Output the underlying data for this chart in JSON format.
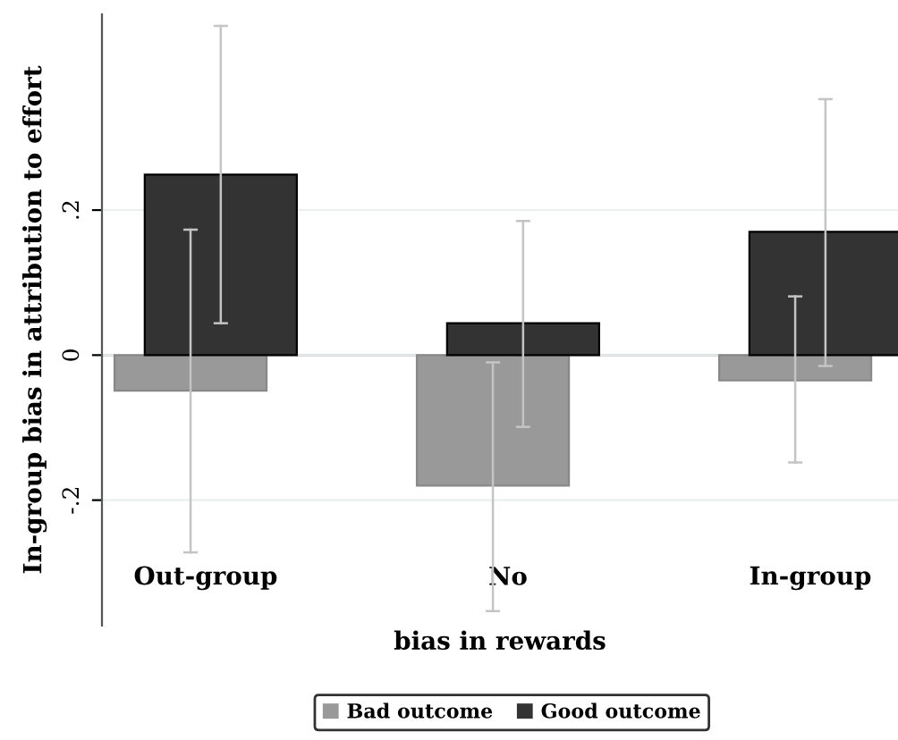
{
  "chart_data": {
    "type": "bar",
    "xlabel": "bias in rewards",
    "ylabel": "In-group bias in attribution to effort",
    "categories": [
      "Out-group",
      "No",
      "In-group"
    ],
    "series": [
      {
        "name": "Bad outcome",
        "color": "#999999",
        "values": [
          -0.049,
          -0.18,
          -0.035
        ],
        "errors": [
          [
            -0.272,
            0.173
          ],
          [
            -0.353,
            -0.01
          ],
          [
            -0.148,
            0.081
          ]
        ]
      },
      {
        "name": "Good outcome",
        "color": "#333333",
        "values": [
          0.249,
          0.044,
          0.17
        ],
        "errors": [
          [
            0.044,
            0.454
          ],
          [
            -0.099,
            0.185
          ],
          [
            -0.015,
            0.353
          ]
        ]
      }
    ],
    "ylim": [
      -0.373,
      0.47
    ],
    "yticks": [
      {
        "value": -0.2,
        "label": "-.2"
      },
      0,
      {
        "value": 0.2,
        "label": ".2"
      }
    ],
    "ref_lines": [
      {
        "axis": "y",
        "value": 0,
        "color": "#a8a8a8"
      }
    ],
    "grid": "y",
    "legend": "bottom"
  }
}
